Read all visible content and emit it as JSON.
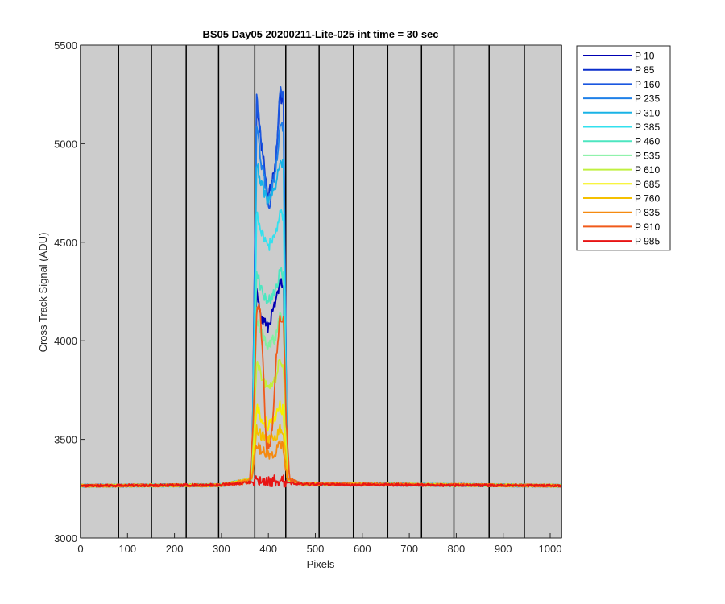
{
  "chart_data": {
    "type": "line",
    "title": "BS05 Day05 20200211-Lite-025 int time = 30 sec",
    "xlabel": "Pixels",
    "ylabel": "Cross Track Signal (ADU)",
    "xlim": [
      0,
      1024
    ],
    "ylim": [
      3000,
      5500
    ],
    "xticks": [
      0,
      100,
      200,
      300,
      400,
      500,
      600,
      700,
      800,
      900,
      1000
    ],
    "yticks": [
      3000,
      3500,
      4000,
      4500,
      5000,
      5500
    ],
    "background_color": "#cccccc",
    "vertical_lines_x": [
      0,
      81,
      151,
      225,
      294,
      371,
      437,
      508,
      581,
      654,
      726,
      795,
      870,
      945,
      1024
    ],
    "grid": false,
    "legend_position": "outside-top-right",
    "baseline": 3268,
    "series": [
      {
        "name": "P 10",
        "color": "#0000b3",
        "values": [
          [
            0,
            3265
          ],
          [
            300,
            3268
          ],
          [
            365,
            3300
          ],
          [
            375,
            4250
          ],
          [
            385,
            4110
          ],
          [
            400,
            4060
          ],
          [
            415,
            4200
          ],
          [
            425,
            4300
          ],
          [
            432,
            4280
          ],
          [
            440,
            3300
          ],
          [
            470,
            3275
          ],
          [
            1024,
            3265
          ]
        ]
      },
      {
        "name": "P 85",
        "color": "#0a2ecc",
        "values": [
          [
            0,
            3265
          ],
          [
            300,
            3268
          ],
          [
            365,
            3300
          ],
          [
            375,
            5200
          ],
          [
            385,
            5000
          ],
          [
            400,
            4720
          ],
          [
            415,
            4900
          ],
          [
            425,
            5250
          ],
          [
            432,
            5200
          ],
          [
            440,
            3300
          ],
          [
            470,
            3275
          ],
          [
            1024,
            3265
          ]
        ]
      },
      {
        "name": "P 160",
        "color": "#1a57e0",
        "values": [
          [
            0,
            3265
          ],
          [
            300,
            3268
          ],
          [
            365,
            3300
          ],
          [
            375,
            5230
          ],
          [
            385,
            5010
          ],
          [
            400,
            4650
          ],
          [
            415,
            4880
          ],
          [
            425,
            5300
          ],
          [
            432,
            5230
          ],
          [
            440,
            3300
          ],
          [
            470,
            3275
          ],
          [
            1024,
            3265
          ]
        ]
      },
      {
        "name": "P 235",
        "color": "#1f80e8",
        "values": [
          [
            0,
            3265
          ],
          [
            300,
            3268
          ],
          [
            365,
            3300
          ],
          [
            375,
            5080
          ],
          [
            385,
            4900
          ],
          [
            400,
            4700
          ],
          [
            415,
            4850
          ],
          [
            425,
            5100
          ],
          [
            432,
            5060
          ],
          [
            440,
            3300
          ],
          [
            470,
            3275
          ],
          [
            1024,
            3265
          ]
        ]
      },
      {
        "name": "P 310",
        "color": "#19b3e6",
        "values": [
          [
            0,
            3265
          ],
          [
            300,
            3268
          ],
          [
            365,
            3300
          ],
          [
            375,
            4900
          ],
          [
            385,
            4800
          ],
          [
            400,
            4700
          ],
          [
            415,
            4780
          ],
          [
            425,
            4920
          ],
          [
            432,
            4880
          ],
          [
            440,
            3300
          ],
          [
            470,
            3275
          ],
          [
            1024,
            3265
          ]
        ]
      },
      {
        "name": "P 385",
        "color": "#33e0ee",
        "values": [
          [
            0,
            3265
          ],
          [
            300,
            3268
          ],
          [
            365,
            3300
          ],
          [
            375,
            4650
          ],
          [
            385,
            4560
          ],
          [
            400,
            4480
          ],
          [
            415,
            4530
          ],
          [
            425,
            4660
          ],
          [
            432,
            4620
          ],
          [
            440,
            3300
          ],
          [
            470,
            3275
          ],
          [
            1024,
            3265
          ]
        ]
      },
      {
        "name": "P 460",
        "color": "#4de6c0",
        "values": [
          [
            0,
            3265
          ],
          [
            300,
            3268
          ],
          [
            365,
            3300
          ],
          [
            375,
            4350
          ],
          [
            385,
            4260
          ],
          [
            400,
            4200
          ],
          [
            415,
            4240
          ],
          [
            425,
            4360
          ],
          [
            432,
            4320
          ],
          [
            440,
            3300
          ],
          [
            470,
            3275
          ],
          [
            1024,
            3265
          ]
        ]
      },
      {
        "name": "P 535",
        "color": "#80f0a0",
        "values": [
          [
            0,
            3265
          ],
          [
            300,
            3268
          ],
          [
            365,
            3300
          ],
          [
            375,
            4120
          ],
          [
            385,
            4040
          ],
          [
            400,
            3980
          ],
          [
            415,
            4020
          ],
          [
            425,
            4130
          ],
          [
            432,
            4090
          ],
          [
            440,
            3300
          ],
          [
            470,
            3275
          ],
          [
            1024,
            3265
          ]
        ]
      },
      {
        "name": "P 610",
        "color": "#c0f040",
        "values": [
          [
            0,
            3265
          ],
          [
            300,
            3268
          ],
          [
            365,
            3300
          ],
          [
            375,
            3900
          ],
          [
            385,
            3820
          ],
          [
            400,
            3760
          ],
          [
            415,
            3800
          ],
          [
            425,
            3910
          ],
          [
            432,
            3870
          ],
          [
            440,
            3300
          ],
          [
            470,
            3275
          ],
          [
            1024,
            3265
          ]
        ]
      },
      {
        "name": "P 685",
        "color": "#f5f000",
        "values": [
          [
            0,
            3265
          ],
          [
            300,
            3268
          ],
          [
            365,
            3300
          ],
          [
            375,
            3660
          ],
          [
            385,
            3610
          ],
          [
            400,
            3570
          ],
          [
            415,
            3600
          ],
          [
            425,
            3670
          ],
          [
            432,
            3640
          ],
          [
            440,
            3300
          ],
          [
            470,
            3275
          ],
          [
            1024,
            3265
          ]
        ]
      },
      {
        "name": "P 760",
        "color": "#f5c000",
        "values": [
          [
            0,
            3265
          ],
          [
            300,
            3268
          ],
          [
            365,
            3300
          ],
          [
            375,
            3560
          ],
          [
            385,
            3520
          ],
          [
            400,
            3490
          ],
          [
            415,
            3510
          ],
          [
            425,
            3560
          ],
          [
            432,
            3540
          ],
          [
            440,
            3300
          ],
          [
            470,
            3275
          ],
          [
            1024,
            3265
          ]
        ]
      },
      {
        "name": "P 835",
        "color": "#f58a10",
        "values": [
          [
            0,
            3265
          ],
          [
            300,
            3268
          ],
          [
            365,
            3300
          ],
          [
            375,
            3470
          ],
          [
            385,
            3440
          ],
          [
            400,
            3420
          ],
          [
            415,
            3440
          ],
          [
            425,
            3480
          ],
          [
            432,
            3460
          ],
          [
            440,
            3300
          ],
          [
            470,
            3275
          ],
          [
            1024,
            3265
          ]
        ]
      },
      {
        "name": "P 910",
        "color": "#f05a1a",
        "values": [
          [
            0,
            3265
          ],
          [
            300,
            3268
          ],
          [
            360,
            3280
          ],
          [
            368,
            3600
          ],
          [
            375,
            4150
          ],
          [
            382,
            4190
          ],
          [
            388,
            3900
          ],
          [
            395,
            3480
          ],
          [
            402,
            3470
          ],
          [
            410,
            3600
          ],
          [
            418,
            3950
          ],
          [
            425,
            4120
          ],
          [
            432,
            4100
          ],
          [
            438,
            3600
          ],
          [
            445,
            3300
          ],
          [
            470,
            3275
          ],
          [
            1024,
            3265
          ]
        ]
      },
      {
        "name": "P 985",
        "color": "#e81414",
        "values": [
          [
            0,
            3265
          ],
          [
            300,
            3270
          ],
          [
            370,
            3285
          ],
          [
            380,
            3292
          ],
          [
            400,
            3288
          ],
          [
            430,
            3290
          ],
          [
            445,
            3280
          ],
          [
            470,
            3272
          ],
          [
            1024,
            3265
          ]
        ]
      }
    ]
  }
}
